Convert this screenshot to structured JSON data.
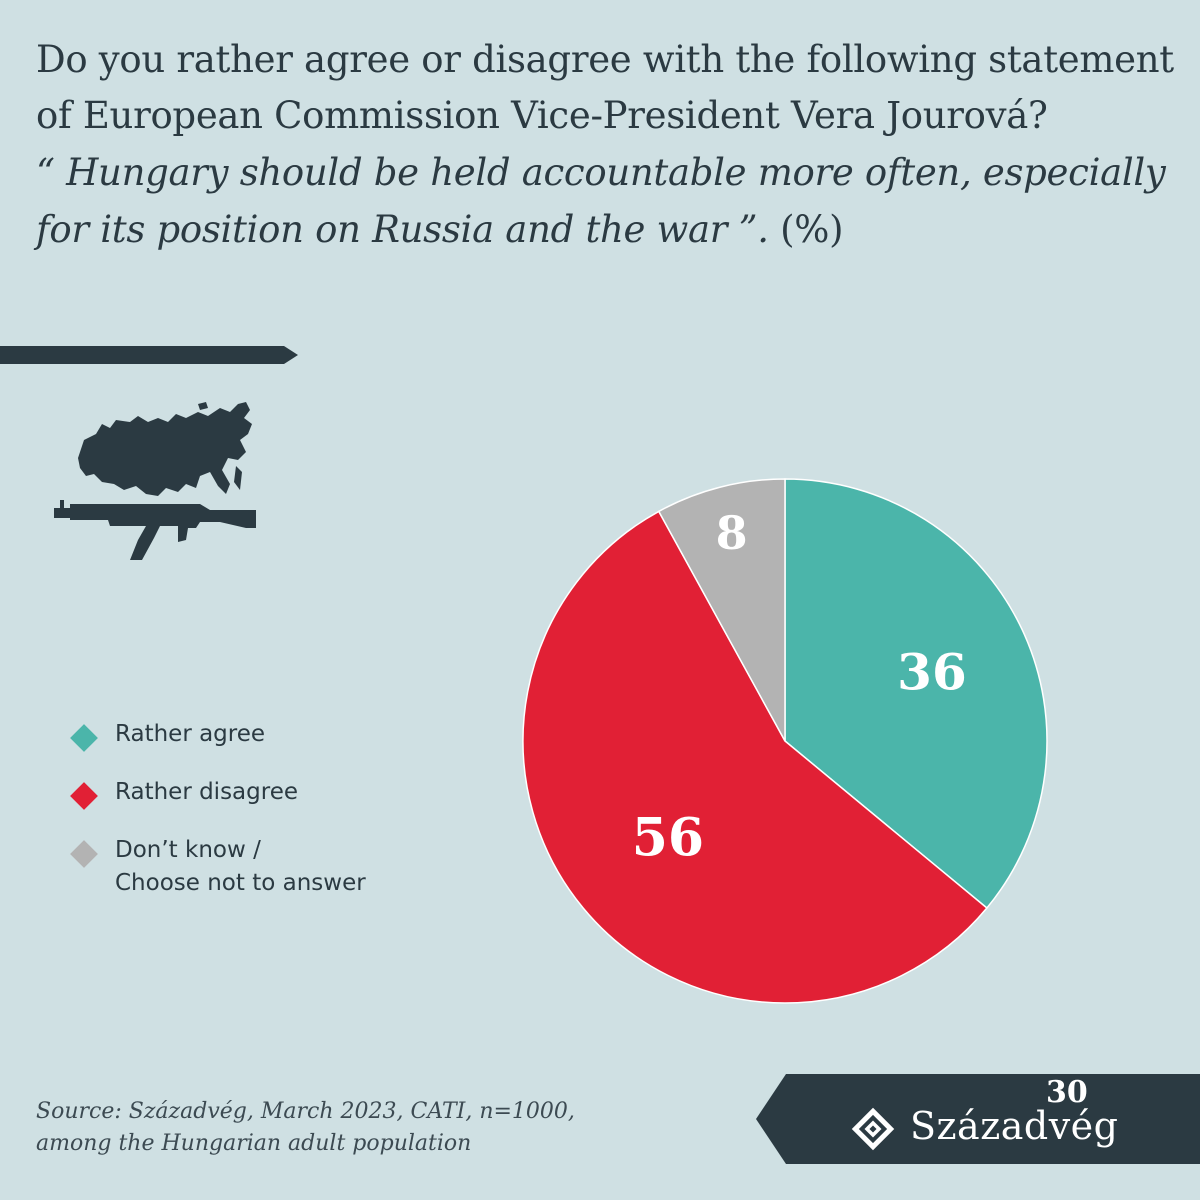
{
  "header": {
    "question": "Do you rather agree or disagree with the following statement of European Commission Vice-President Vera Jourová?",
    "quote": "“ Hungary should be held accountable more often, especially for its position on Russia and the war ”.",
    "unit": "(%)"
  },
  "icons": {
    "map": "russia-map-icon",
    "rifle": "assault-rifle-icon"
  },
  "colors": {
    "background": "#cfe0e3",
    "dark": "#2b3a42",
    "agree": "#4bb5aa",
    "disagree": "#e12035",
    "dont_know": "#b3b3b3"
  },
  "legend": [
    {
      "label": "Rather agree",
      "color": "#4bb5aa"
    },
    {
      "label": "Rather disagree",
      "color": "#e12035"
    },
    {
      "label": "Don’t know /\nChoose not to answer",
      "color": "#b3b3b3"
    }
  ],
  "chart_data": {
    "type": "pie",
    "categories": [
      "Rather agree",
      "Rather disagree",
      "Don’t know / Choose not to answer"
    ],
    "values": [
      36,
      56,
      8
    ],
    "colors": [
      "#4bb5aa",
      "#e12035",
      "#b3b3b3"
    ],
    "data_labels": [
      "36",
      "56",
      "8"
    ],
    "start": "12 o'clock, clockwise",
    "legend_position": "left"
  },
  "footer": {
    "source_line1": "Source: Századvég, March 2023, CATI, n=1000,",
    "source_line2": "among the Hungarian adult population",
    "logo_name": "Századvég",
    "logo_anniversary": "30"
  }
}
